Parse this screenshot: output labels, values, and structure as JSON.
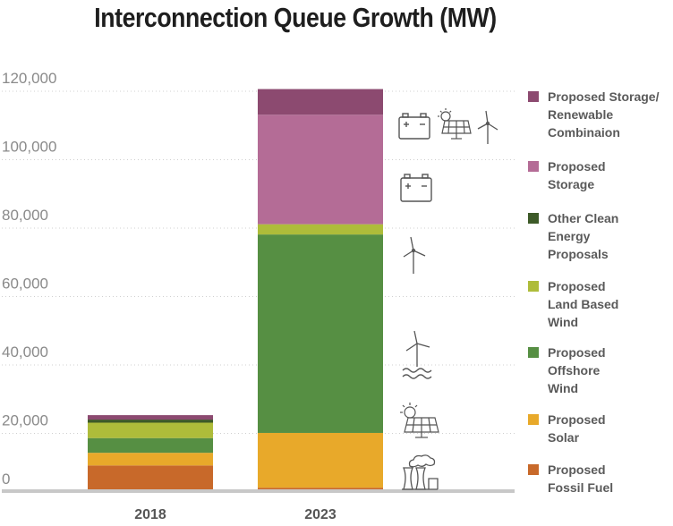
{
  "chart_data": {
    "type": "bar",
    "stacked": true,
    "title": "Interconnection Queue Growth (MW)",
    "xlabel": "",
    "ylabel": "",
    "ylim": [
      0,
      120000
    ],
    "yticks": [
      "0",
      "20,000",
      "40,000",
      "60,000",
      "80,000",
      "100,000",
      "120,000"
    ],
    "categories": [
      "2018",
      "2023"
    ],
    "grid": "horizontal dotted",
    "legend_position": "right",
    "series": [
      {
        "name": "Proposed Fossil Fuel",
        "color": "#c8692a",
        "values": [
          7500,
          1000
        ]
      },
      {
        "name": "Proposed Solar",
        "color": "#e8a92a",
        "values": [
          3700,
          16000
        ]
      },
      {
        "name": "Proposed Offshore Wind",
        "color": "#568f43",
        "values": [
          4300,
          58000
        ]
      },
      {
        "name": "Proposed Land Based Wind",
        "color": "#aebc3a",
        "values": [
          4500,
          3000
        ]
      },
      {
        "name": "Other Clean Energy Proposals",
        "color": "#3d5a28",
        "values": [
          900,
          0
        ]
      },
      {
        "name": "Proposed Storage",
        "color": "#b46c96",
        "values": [
          0,
          32000
        ]
      },
      {
        "name": "Proposed Storage/ Renewable Combinaion",
        "color": "#8c4a70",
        "values": [
          1300,
          7500
        ]
      }
    ]
  },
  "legend": [
    {
      "lines": [
        "Proposed Storage/",
        "Renewable",
        "Combinaion"
      ],
      "color": "#8c4a70"
    },
    {
      "lines": [
        "Proposed",
        "Storage"
      ],
      "color": "#b46c96"
    },
    {
      "lines": [
        "Other Clean",
        "Energy",
        "Proposals"
      ],
      "color": "#3d5a28"
    },
    {
      "lines": [
        "Proposed",
        "Land Based",
        "Wind"
      ],
      "color": "#aebc3a"
    },
    {
      "lines": [
        "Proposed",
        "Offshore",
        "Wind"
      ],
      "color": "#568f43"
    },
    {
      "lines": [
        "Proposed",
        "Solar"
      ],
      "color": "#e8a92a"
    },
    {
      "lines": [
        "Proposed",
        "Fossil Fuel"
      ],
      "color": "#c8692a"
    }
  ],
  "icons": [
    "battery-icon",
    "solar-panel-icon",
    "wind-turbine-icon",
    "battery-icon",
    "wind-turbine-icon",
    "offshore-wind-turbine-icon",
    "solar-panel-icon",
    "fossil-fuel-plant-icon"
  ]
}
